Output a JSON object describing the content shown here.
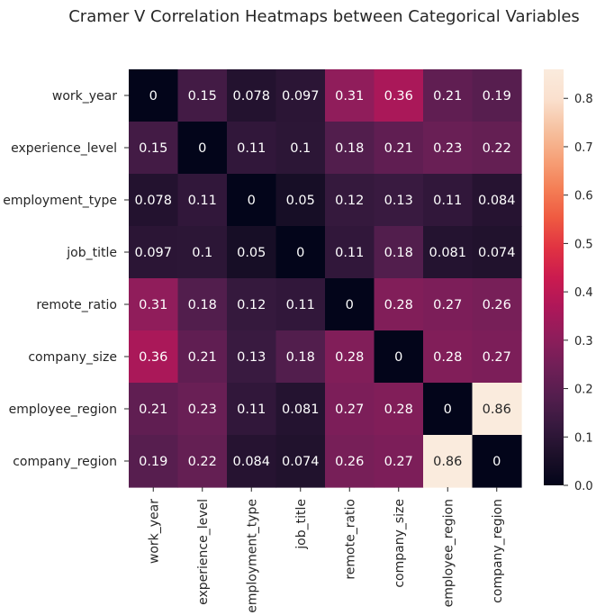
{
  "chart_data": {
    "type": "heatmap",
    "title": "Cramer V Correlation Heatmaps between Categorical Variables",
    "row_labels": [
      "work_year",
      "experience_level",
      "employment_type",
      "job_title",
      "remote_ratio",
      "company_size",
      "employee_region",
      "company_region"
    ],
    "col_labels": [
      "work_year",
      "experience_level",
      "employment_type",
      "job_title",
      "remote_ratio",
      "company_size",
      "employee_region",
      "company_region"
    ],
    "values": [
      [
        0,
        0.15,
        0.078,
        0.097,
        0.31,
        0.36,
        0.21,
        0.19
      ],
      [
        0.15,
        0,
        0.11,
        0.1,
        0.18,
        0.21,
        0.23,
        0.22
      ],
      [
        0.078,
        0.11,
        0,
        0.05,
        0.12,
        0.13,
        0.11,
        0.084
      ],
      [
        0.097,
        0.1,
        0.05,
        0,
        0.11,
        0.18,
        0.081,
        0.074
      ],
      [
        0.31,
        0.18,
        0.12,
        0.11,
        0,
        0.28,
        0.27,
        0.26
      ],
      [
        0.36,
        0.21,
        0.13,
        0.18,
        0.28,
        0,
        0.28,
        0.27
      ],
      [
        0.21,
        0.23,
        0.11,
        0.081,
        0.27,
        0.28,
        0,
        0.86
      ],
      [
        0.19,
        0.22,
        0.084,
        0.074,
        0.26,
        0.27,
        0.86,
        0
      ]
    ],
    "colorbar": {
      "min": 0,
      "max": 0.86,
      "ticks": [
        0.0,
        0.1,
        0.2,
        0.3,
        0.4,
        0.5,
        0.6,
        0.7,
        0.8
      ],
      "tick_labels": [
        "0.0",
        "0.1",
        "0.2",
        "0.3",
        "0.4",
        "0.5",
        "0.6",
        "0.7",
        "0.8"
      ]
    },
    "colormap": "rocket",
    "colormap_stops": [
      "#03051a",
      "#1c1029",
      "#36193e",
      "#541e4e",
      "#701f57",
      "#8f1d5b",
      "#ae1759",
      "#cb1b4f",
      "#e13342",
      "#ef5a41",
      "#f47f56",
      "#f6a279",
      "#f6c2a1",
      "#fae0ce",
      "#faebdd"
    ]
  }
}
